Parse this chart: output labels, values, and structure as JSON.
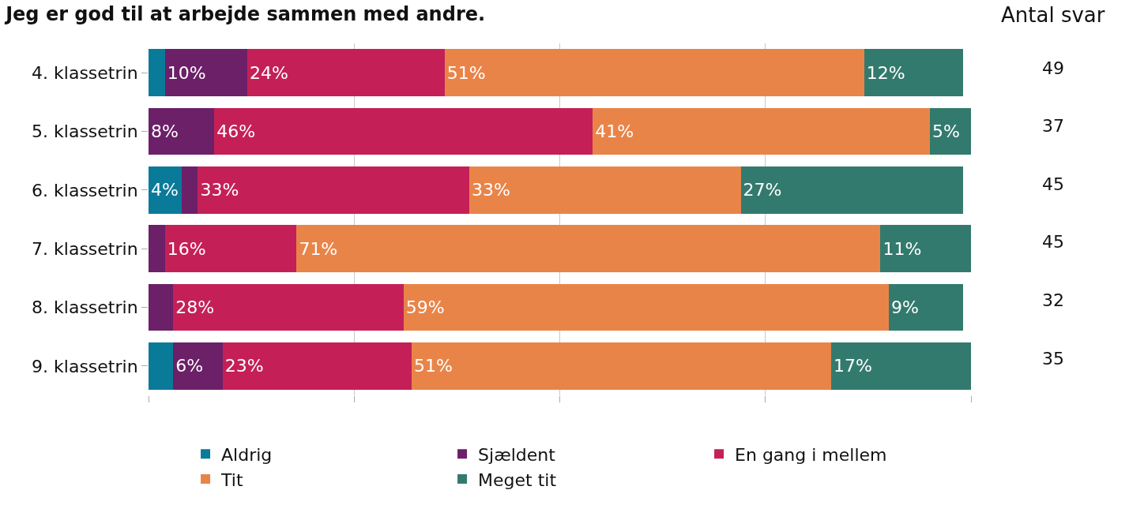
{
  "chart_data": {
    "type": "bar",
    "orientation": "horizontal",
    "stacked": true,
    "title": "Jeg er god til at arbejde sammen med andre.",
    "categories": [
      "4. klassetrin",
      "5. klassetrin",
      "6. klassetrin",
      "7. klassetrin",
      "8. klassetrin",
      "9. klassetrin"
    ],
    "series": [
      {
        "name": "Aldrig",
        "color": "#0a7a99",
        "values": [
          2,
          0,
          4,
          0,
          0,
          3
        ],
        "value_labels": [
          null,
          null,
          "4%",
          null,
          null,
          null
        ]
      },
      {
        "name": "Sjældent",
        "color": "#6b2068",
        "values": [
          10,
          8,
          2,
          2,
          3,
          6
        ],
        "value_labels": [
          "10%",
          "8%",
          null,
          null,
          null,
          "6%"
        ]
      },
      {
        "name": "En gang i mellem",
        "color": "#c42057",
        "values": [
          24,
          46,
          33,
          16,
          28,
          23
        ],
        "value_labels": [
          "24%",
          "46%",
          "33%",
          "16%",
          "28%",
          "23%"
        ]
      },
      {
        "name": "Tit",
        "color": "#e98449",
        "values": [
          51,
          41,
          33,
          71,
          59,
          51
        ],
        "value_labels": [
          "51%",
          "41%",
          "33%",
          "71%",
          "59%",
          "51%"
        ]
      },
      {
        "name": "Meget tit",
        "color": "#337a6e",
        "values": [
          12,
          5,
          27,
          11,
          9,
          17
        ],
        "value_labels": [
          "12%",
          "5%",
          "27%",
          "11%",
          "9%",
          "17%"
        ]
      }
    ],
    "xlim": [
      0,
      100
    ],
    "xticks": [
      {
        "value": 0,
        "label": null
      },
      {
        "value": 25,
        "label": null
      },
      {
        "value": 50,
        "label": null
      },
      {
        "value": 75,
        "label": null
      },
      {
        "value": 100,
        "label": null
      }
    ],
    "tick_labels": "y",
    "grid": "x",
    "legend": "bottom",
    "annotations": [
      "Antal svar",
      "49",
      "37",
      "45",
      "45",
      "32",
      "35"
    ]
  }
}
